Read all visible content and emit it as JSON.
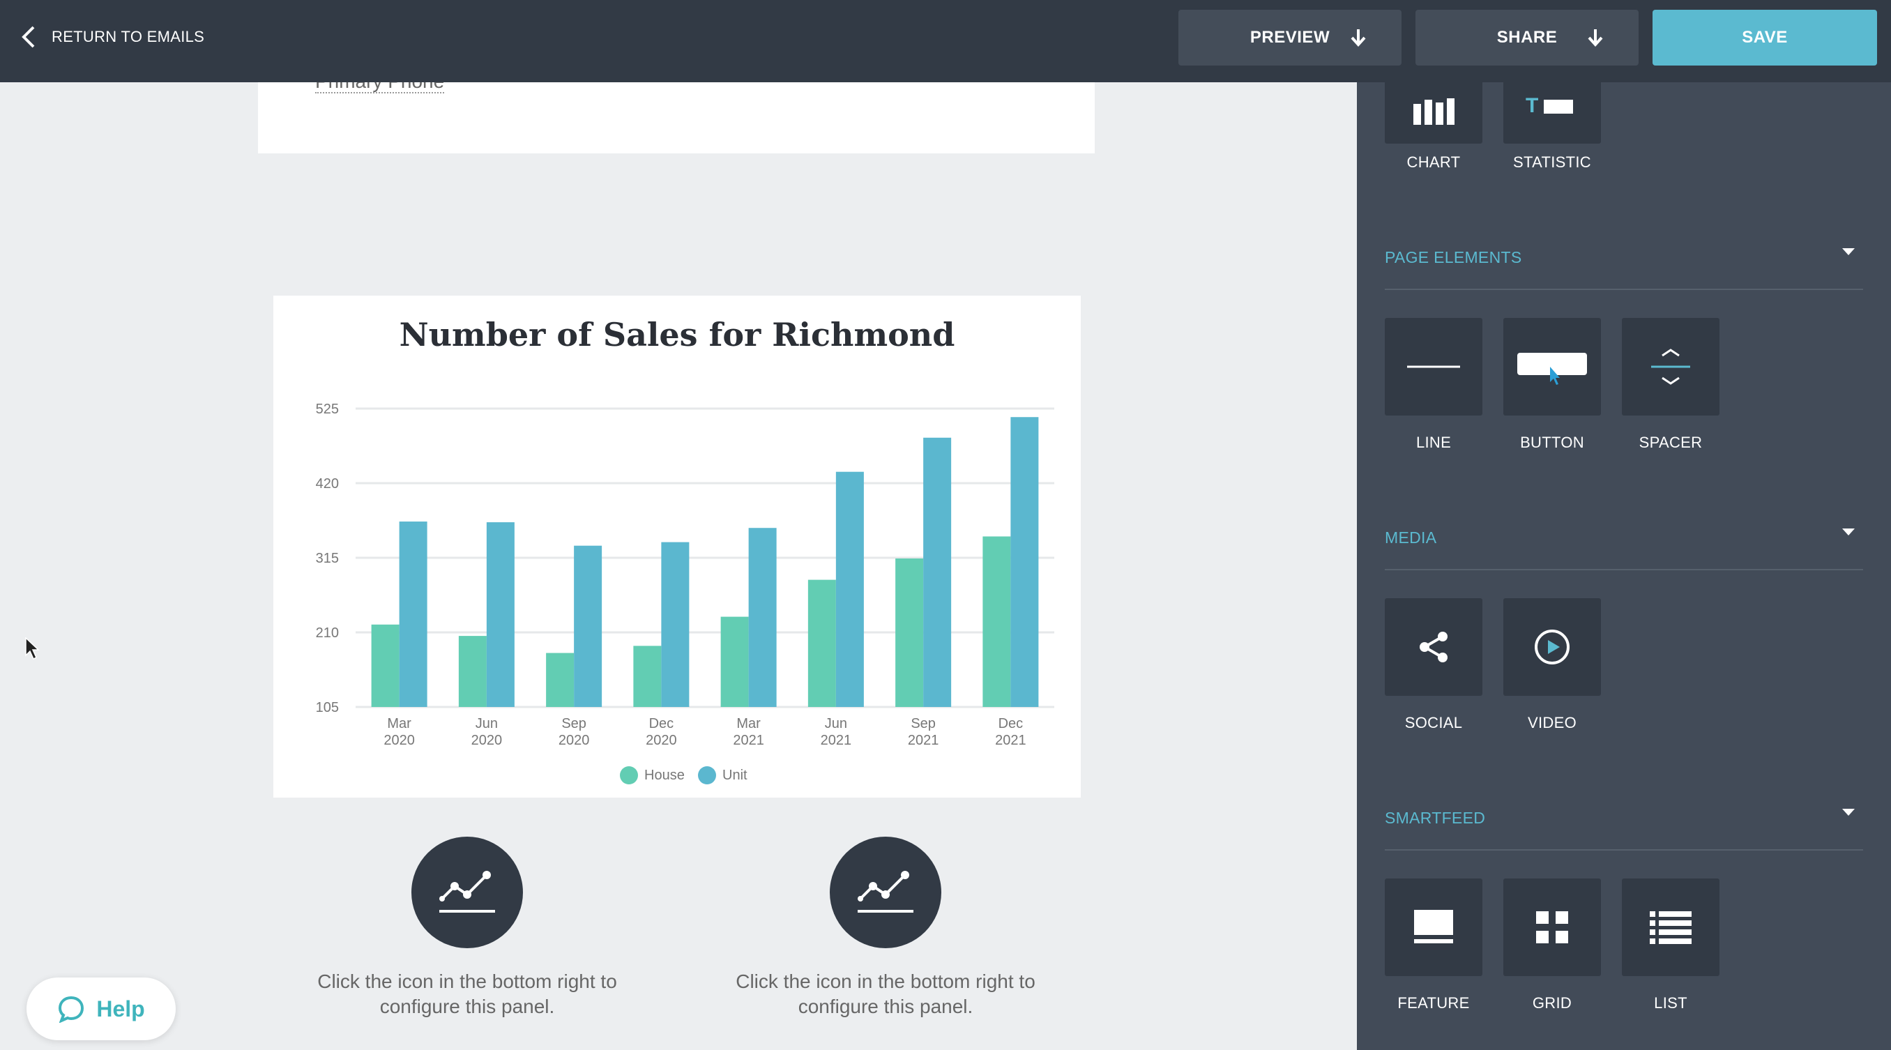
{
  "topbar": {
    "back_label": "RETURN TO EMAILS",
    "preview_label": "PREVIEW",
    "share_label": "SHARE",
    "save_label": "SAVE",
    "accent_color": "#5bbad0"
  },
  "canvas": {
    "primary_phone_label": "Primary Phone",
    "panels": [
      {
        "icon": "line-chart-icon",
        "text_line1": "Click the icon in the bottom right to",
        "text_line2": "configure this panel."
      },
      {
        "icon": "line-chart-icon",
        "text_line1": "Click the icon in the bottom right to",
        "text_line2": "configure this panel."
      }
    ]
  },
  "help": {
    "label": "Help",
    "icon": "chat-bubble-icon"
  },
  "chart_data": {
    "type": "bar",
    "title": "Number of Sales for Richmond",
    "categories": [
      "Mar 2020",
      "Jun 2020",
      "Sep 2020",
      "Dec 2020",
      "Mar 2021",
      "Jun 2021",
      "Sep 2021",
      "Dec 2021"
    ],
    "category_lines": [
      [
        "Mar",
        "2020"
      ],
      [
        "Jun",
        "2020"
      ],
      [
        "Sep",
        "2020"
      ],
      [
        "Dec",
        "2020"
      ],
      [
        "Mar",
        "2021"
      ],
      [
        "Jun",
        "2021"
      ],
      [
        "Sep",
        "2021"
      ],
      [
        "Dec",
        "2021"
      ]
    ],
    "series": [
      {
        "name": "House",
        "color": "#62cdb3",
        "values": [
          221,
          205,
          181,
          191,
          232,
          284,
          314,
          345
        ]
      },
      {
        "name": "Unit",
        "color": "#5bb7cf",
        "values": [
          366,
          365,
          332,
          337,
          357,
          436,
          484,
          513
        ]
      }
    ],
    "yticks": [
      105,
      210,
      315,
      420,
      525
    ],
    "ylim": [
      105,
      525
    ],
    "grid": true,
    "legend_position": "bottom"
  },
  "sidebar": {
    "top_items": [
      {
        "label": "CHART",
        "icon": "bar-chart-icon"
      },
      {
        "label": "STATISTIC",
        "icon": "statistic-icon"
      }
    ],
    "sections": [
      {
        "title": "PAGE ELEMENTS",
        "items": [
          {
            "label": "LINE",
            "icon": "line-icon"
          },
          {
            "label": "BUTTON",
            "icon": "button-icon"
          },
          {
            "label": "SPACER",
            "icon": "spacer-icon"
          }
        ]
      },
      {
        "title": "MEDIA",
        "items": [
          {
            "label": "SOCIAL",
            "icon": "share-icon"
          },
          {
            "label": "VIDEO",
            "icon": "play-icon"
          }
        ]
      },
      {
        "title": "SMARTFEED",
        "items": [
          {
            "label": "FEATURE",
            "icon": "feature-icon"
          },
          {
            "label": "GRID",
            "icon": "grid-icon"
          },
          {
            "label": "LIST",
            "icon": "list-icon"
          }
        ]
      }
    ]
  }
}
